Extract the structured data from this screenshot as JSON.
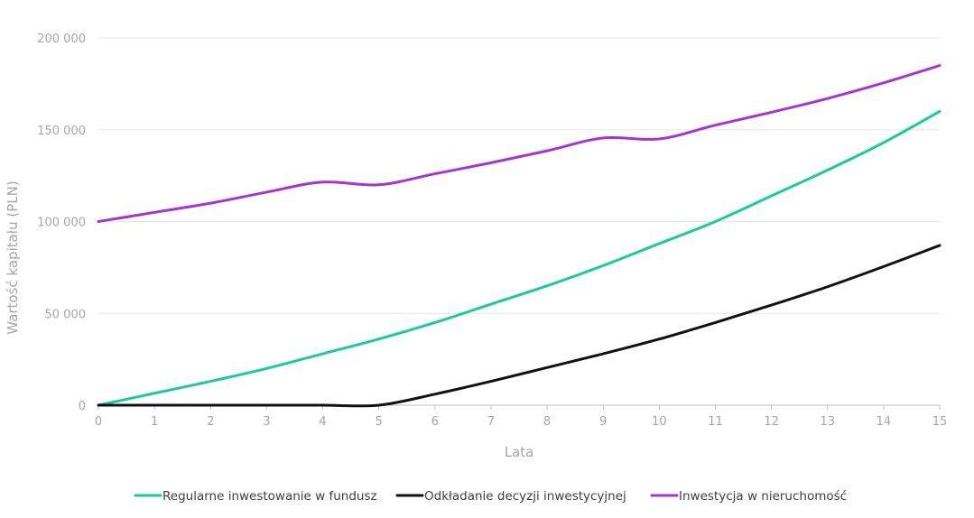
{
  "chart_data": {
    "type": "line",
    "xlabel": "Lata",
    "ylabel": "Wartość kapitału (PLN)",
    "xlim": [
      0,
      15
    ],
    "ylim": [
      0,
      200000
    ],
    "x_ticks": [
      0,
      1,
      2,
      3,
      4,
      5,
      6,
      7,
      8,
      9,
      10,
      11,
      12,
      13,
      14,
      15
    ],
    "y_ticks": [
      0,
      50000,
      100000,
      150000,
      200000
    ],
    "y_tick_labels": [
      "0",
      "50 000",
      "100 000",
      "150 000",
      "200 000"
    ],
    "grid": "horizontal",
    "legend_position": "bottom",
    "x": [
      0,
      1,
      2,
      3,
      4,
      5,
      6,
      7,
      8,
      9,
      10,
      11,
      12,
      13,
      14,
      15
    ],
    "series": [
      {
        "name": "Regularne inwestowanie w fundusz",
        "color": "#1ec99b",
        "values": [
          0,
          6500,
          13000,
          20000,
          28000,
          36000,
          45000,
          55000,
          65000,
          76000,
          88000,
          100000,
          114000,
          128000,
          143000,
          160000
        ]
      },
      {
        "name": "Odkładanie decyzji inwestycyjnej",
        "color": "#111111",
        "values": [
          0,
          0,
          0,
          0,
          0,
          0,
          6000,
          13000,
          20500,
          28000,
          36000,
          45000,
          54500,
          64500,
          75500,
          87000
        ]
      },
      {
        "name": "Inwestycja w nieruchomość",
        "color": "#a535d0",
        "values": [
          100000,
          105000,
          110000,
          116000,
          121500,
          120000,
          126000,
          132000,
          138500,
          145500,
          145000,
          152500,
          159500,
          167000,
          175500,
          185000
        ]
      }
    ]
  }
}
